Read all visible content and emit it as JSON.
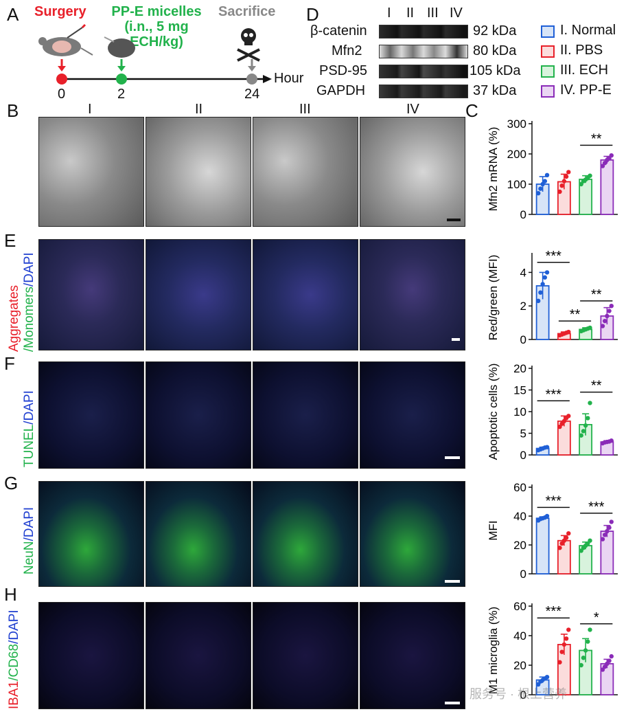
{
  "panelA": {
    "letter": "A",
    "surgery": "Surgery",
    "micelles_line1": "PP-E micelles",
    "micelles_line2": "(i.n., 5 mg",
    "micelles_line3": "ECH/kg)",
    "sacrifice": "Sacrifice",
    "t0": "0",
    "t2": "2",
    "t24": "24",
    "axis_unit": "Hour",
    "colors": {
      "surgery": "#e8202a",
      "micelles": "#22b24c",
      "sacrifice": "#888888"
    }
  },
  "panelB": {
    "letter": "B",
    "groups": [
      "I",
      "II",
      "III",
      "IV"
    ]
  },
  "panelD": {
    "letter": "D",
    "groups": [
      "I",
      "II",
      "III",
      "IV"
    ],
    "bands": [
      {
        "name": "β-catenin",
        "kda": "92 kDa"
      },
      {
        "name": "Mfn2",
        "kda": "80 kDa"
      },
      {
        "name": "PSD-95",
        "kda": "105 kDa"
      },
      {
        "name": "GAPDH",
        "kda": "37 kDa"
      }
    ]
  },
  "legend": [
    {
      "label": "I. Normal",
      "color": "#1f5fd6",
      "fill": "#d7e4f7"
    },
    {
      "label": "II. PBS",
      "color": "#e8202a",
      "fill": "#fbdcdc"
    },
    {
      "label": "III. ECH",
      "color": "#22b24c",
      "fill": "#d8f3dd"
    },
    {
      "label": "IV. PP-E",
      "color": "#8a2bb8",
      "fill": "#ead6f3"
    }
  ],
  "panelE": {
    "letter": "E",
    "ylabel_red": "Aggregates",
    "ylabel_green": "/Monomers",
    "ylabel_blue": "/DAPI"
  },
  "panelF": {
    "letter": "F",
    "ylabel_green": "TUNEL",
    "ylabel_blue": "/DAPI"
  },
  "panelG": {
    "letter": "G",
    "ylabel_green": "NeuN",
    "ylabel_blue": "/DAPI"
  },
  "panelH": {
    "letter": "H",
    "ylabel_red": "IBA1",
    "ylabel_green": "/CD68",
    "ylabel_blue": "/DAPI"
  },
  "panelC_letter": "C",
  "watermark": "服务号 · 根上营养",
  "chart_data": [
    {
      "type": "bar",
      "panel": "C",
      "ylabel": "Mfn2 mRNA (%)",
      "ylim": [
        0,
        300
      ],
      "yticks": [
        "0",
        "100",
        "200",
        "300"
      ],
      "values": [
        100,
        108,
        116,
        180
      ],
      "errors": [
        25,
        25,
        12,
        12
      ],
      "points": [
        [
          70,
          85,
          100,
          110,
          130
        ],
        [
          75,
          95,
          110,
          125,
          140
        ],
        [
          100,
          110,
          115,
          120,
          128
        ],
        [
          160,
          170,
          180,
          185,
          195
        ]
      ],
      "sig": [
        {
          "from": 2,
          "to": 3,
          "text": "**"
        }
      ]
    },
    {
      "type": "bar",
      "panel": "E",
      "ylabel": "Red/green (MFI)",
      "ylim": [
        0,
        5
      ],
      "yticks": [
        "0",
        "2",
        "4"
      ],
      "values": [
        3.2,
        0.35,
        0.6,
        1.4
      ],
      "errors": [
        0.8,
        0.1,
        0.1,
        0.5
      ],
      "points": [
        [
          2.3,
          2.8,
          3.3,
          3.7,
          4.0
        ],
        [
          0.25,
          0.3,
          0.35,
          0.4,
          0.45
        ],
        [
          0.5,
          0.55,
          0.6,
          0.65,
          0.7
        ],
        [
          0.8,
          1.1,
          1.4,
          1.7,
          2.0
        ]
      ],
      "sig": [
        {
          "from": 0,
          "to": 1,
          "text": "***",
          "y": 4.6
        },
        {
          "from": 1,
          "to": 2,
          "text": "**",
          "y": 1.1
        },
        {
          "from": 2,
          "to": 3,
          "text": "**",
          "y": 2.3
        }
      ]
    },
    {
      "type": "bar",
      "panel": "F",
      "ylabel": "Apoptotic cells (%)",
      "ylim": [
        0,
        20
      ],
      "yticks": [
        "0",
        "5",
        "10",
        "15",
        "20"
      ],
      "values": [
        1.5,
        7.8,
        7.0,
        3.0
      ],
      "errors": [
        0.3,
        1.2,
        2.5,
        0.3
      ],
      "points": [
        [
          1.1,
          1.3,
          1.5,
          1.7,
          1.8
        ],
        [
          6.5,
          7.2,
          7.8,
          8.5,
          9.0
        ],
        [
          4.5,
          5.5,
          6.8,
          8.5,
          12.0
        ],
        [
          2.7,
          2.9,
          3.0,
          3.1,
          3.3
        ]
      ],
      "sig": [
        {
          "from": 0,
          "to": 1,
          "text": "***",
          "y": 12.5
        },
        {
          "from": 2,
          "to": 3,
          "text": "**",
          "y": 14.5
        }
      ]
    },
    {
      "type": "bar",
      "panel": "G",
      "ylabel": "MFI",
      "ylim": [
        0,
        60
      ],
      "yticks": [
        "0",
        "20",
        "40",
        "60"
      ],
      "values": [
        38.5,
        23,
        19.5,
        29.5
      ],
      "errors": [
        1,
        3.5,
        2.5,
        4
      ],
      "points": [
        [
          37,
          38,
          38.5,
          39,
          40
        ],
        [
          18,
          21,
          23,
          25,
          28
        ],
        [
          16,
          18,
          19.5,
          21,
          23
        ],
        [
          24,
          27,
          29.5,
          32,
          36
        ]
      ],
      "sig": [
        {
          "from": 0,
          "to": 1,
          "text": "***",
          "y": 46
        },
        {
          "from": 2,
          "to": 3,
          "text": "***",
          "y": 42
        }
      ]
    },
    {
      "type": "bar",
      "panel": "H",
      "ylabel": "M1 microglia (%)",
      "ylim": [
        0,
        60
      ],
      "yticks": [
        "0",
        "20",
        "40",
        "60"
      ],
      "values": [
        10,
        34,
        30,
        21
      ],
      "errors": [
        2,
        7,
        8,
        3
      ],
      "points": [
        [
          7,
          9,
          10,
          11,
          12
        ],
        [
          22,
          29,
          34,
          38,
          44
        ],
        [
          20,
          25,
          30,
          36,
          44
        ],
        [
          17,
          19,
          21,
          23,
          26
        ]
      ],
      "sig": [
        {
          "from": 0,
          "to": 1,
          "text": "***",
          "y": 52
        },
        {
          "from": 2,
          "to": 3,
          "text": "*",
          "y": 48
        }
      ]
    }
  ]
}
